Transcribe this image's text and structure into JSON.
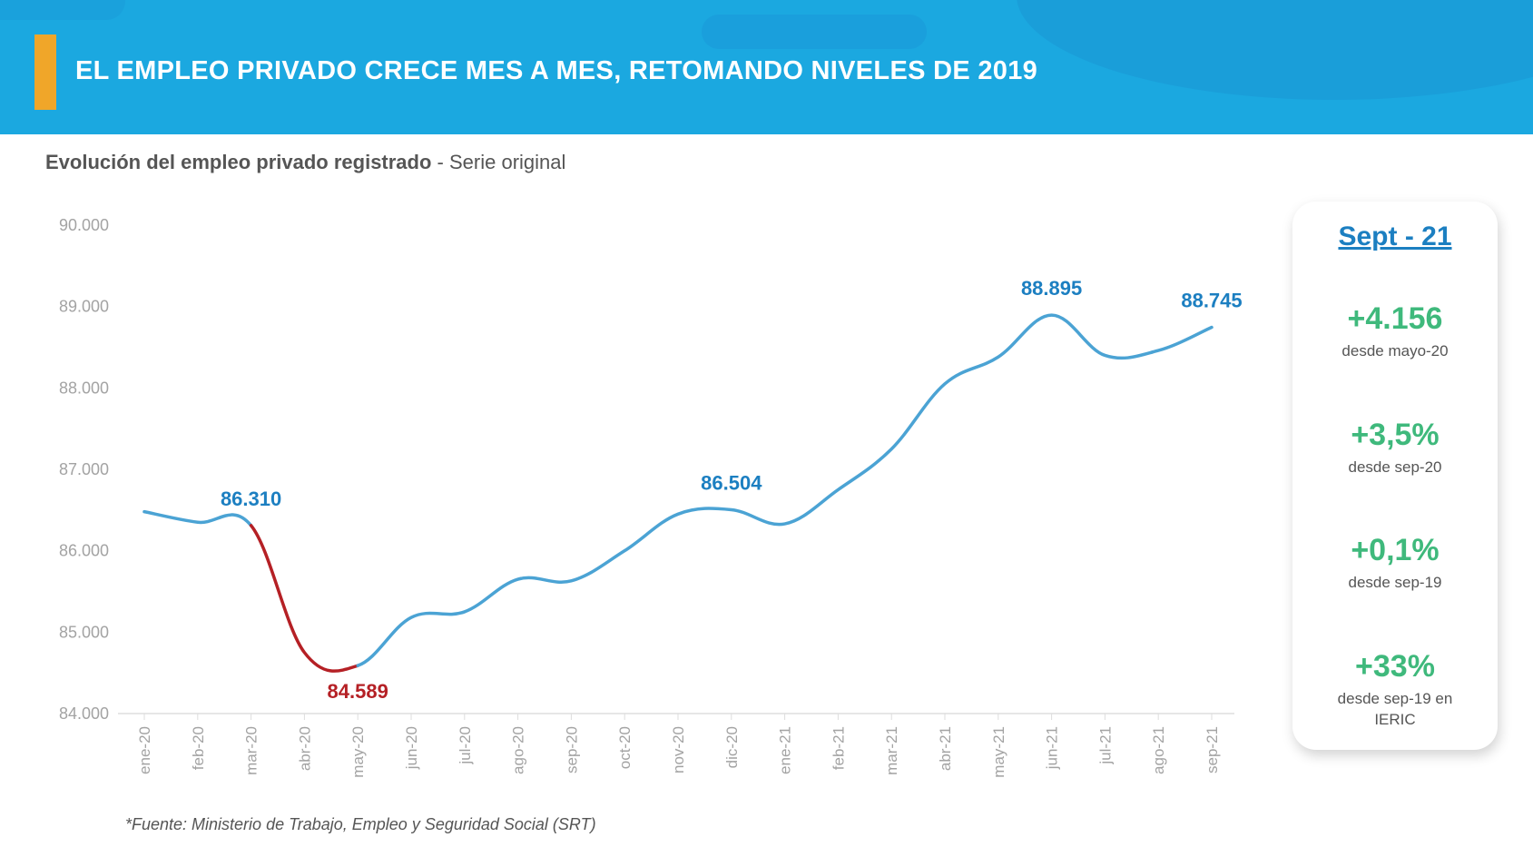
{
  "header": {
    "title": "EL EMPLEO PRIVADO CRECE MES A MES, RETOMANDO NIVELES DE 2019"
  },
  "subtitle": {
    "bold": "Evolución del empleo privado registrado",
    "rest": " - Serie original"
  },
  "colors": {
    "header_bg": "#1ba8e0",
    "accent": "#f0a629",
    "line_main": "#4ba3d4",
    "line_decline": "#b52025",
    "stat_green": "#3fb97c",
    "label_blue": "#1c7fc1"
  },
  "chart_data": {
    "type": "line",
    "categories": [
      "ene-20",
      "feb-20",
      "mar-20",
      "abr-20",
      "may-20",
      "jun-20",
      "jul-20",
      "ago-20",
      "sep-20",
      "oct-20",
      "nov-20",
      "dic-20",
      "ene-21",
      "feb-21",
      "mar-21",
      "abr-21",
      "may-21",
      "jun-21",
      "jul-21",
      "ago-21",
      "sep-21"
    ],
    "values": [
      86480,
      86350,
      86310,
      84750,
      84589,
      85180,
      85250,
      85650,
      85630,
      86000,
      86450,
      86504,
      86330,
      86750,
      87250,
      88050,
      88380,
      88895,
      88400,
      88460,
      88745
    ],
    "decline_segment": {
      "from": "mar-20",
      "to": "may-20"
    },
    "y_ticks": [
      "90.000",
      "89.000",
      "88.000",
      "87.000",
      "86.000",
      "85.000",
      "84.000"
    ],
    "ylim": [
      84000,
      90000
    ],
    "annotations": [
      {
        "index": 2,
        "label": "86.310",
        "color": "#1c7fc1"
      },
      {
        "index": 4,
        "label": "84.589",
        "color": "#b52025"
      },
      {
        "index": 11,
        "label": "86.504",
        "color": "#1c7fc1"
      },
      {
        "index": 17,
        "label": "88.895",
        "color": "#1c7fc1"
      },
      {
        "index": 20,
        "label": "88.745",
        "color": "#1c7fc1"
      }
    ],
    "grid": false
  },
  "panel": {
    "title": "Sept - 21",
    "stats": [
      {
        "value": "+4.156",
        "desc": "desde mayo-20"
      },
      {
        "value": "+3,5%",
        "desc": "desde sep-20"
      },
      {
        "value": "+0,1%",
        "desc": "desde sep-19"
      },
      {
        "value": "+33%",
        "desc": "desde sep-19 en IERIC"
      }
    ]
  },
  "source": "*Fuente: Ministerio de Trabajo, Empleo y Seguridad Social (SRT)"
}
